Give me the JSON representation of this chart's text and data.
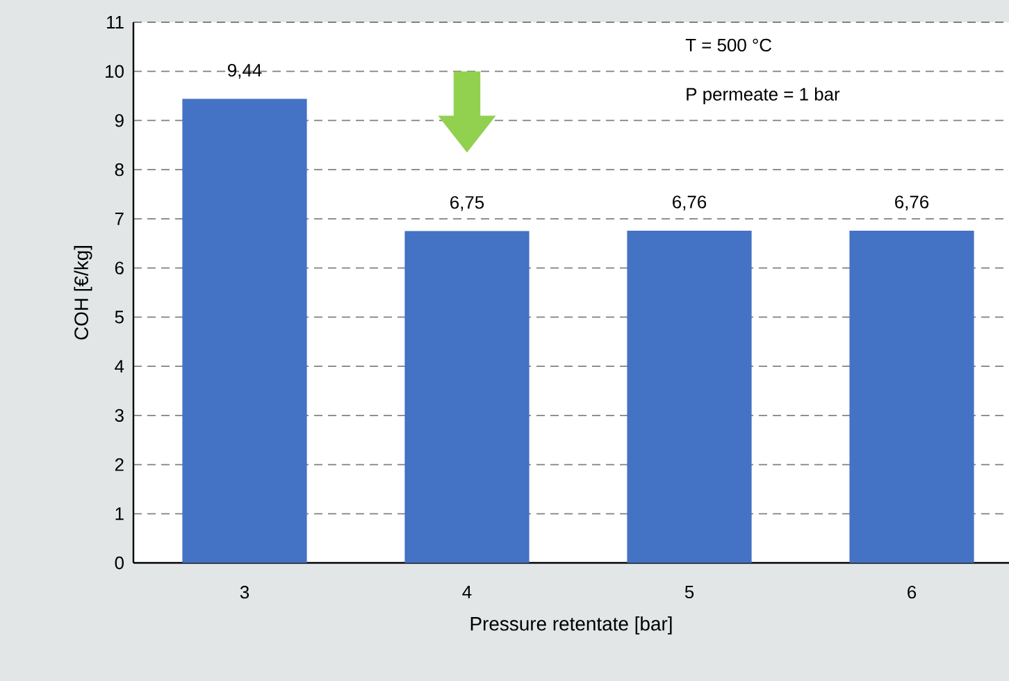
{
  "chart_data": {
    "type": "bar",
    "xlabel": "Pressure retentate [bar]",
    "ylabel": "COH [€/kg]",
    "categories": [
      "3",
      "4",
      "5",
      "6"
    ],
    "values": [
      9.44,
      6.75,
      6.76,
      6.76
    ],
    "value_labels": [
      "9,44",
      "6,75",
      "6,76",
      "6,76"
    ],
    "color": "#4472c4",
    "ylim": [
      0,
      11
    ],
    "yticks": [
      0,
      1,
      2,
      3,
      4,
      5,
      6,
      7,
      8,
      9,
      10,
      11
    ],
    "grid": "y",
    "annotations": [
      "T = 500 °C",
      "P permeate = 1 bar"
    ]
  }
}
